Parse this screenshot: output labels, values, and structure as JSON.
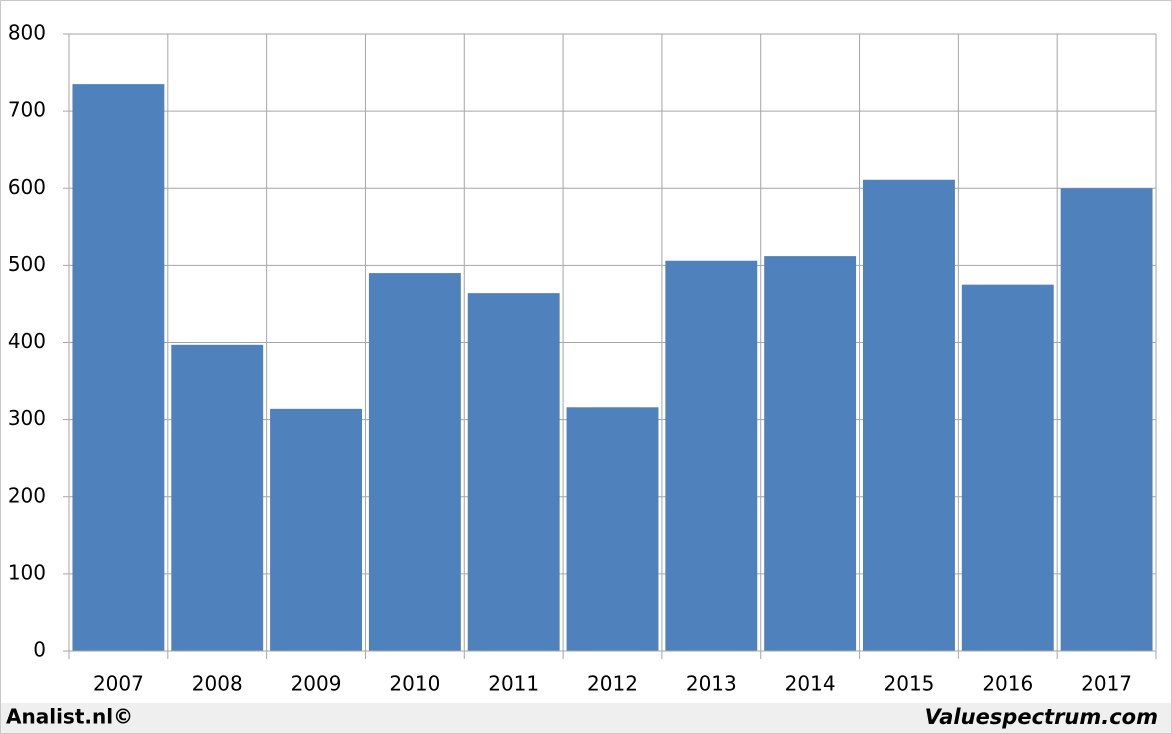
{
  "chart_data": {
    "type": "bar",
    "categories": [
      "2007",
      "2008",
      "2009",
      "2010",
      "2011",
      "2012",
      "2013",
      "2014",
      "2015",
      "2016",
      "2017"
    ],
    "values": [
      735,
      397,
      314,
      490,
      464,
      316,
      506,
      512,
      611,
      475,
      600
    ],
    "color": "#4f81bd",
    "ylim": [
      0,
      800
    ],
    "yticks": [
      0,
      100,
      200,
      300,
      400,
      500,
      600,
      700,
      800
    ],
    "grid": true
  },
  "footer": {
    "left": "Analist.nl©",
    "right": "Valuespectrum.com"
  }
}
